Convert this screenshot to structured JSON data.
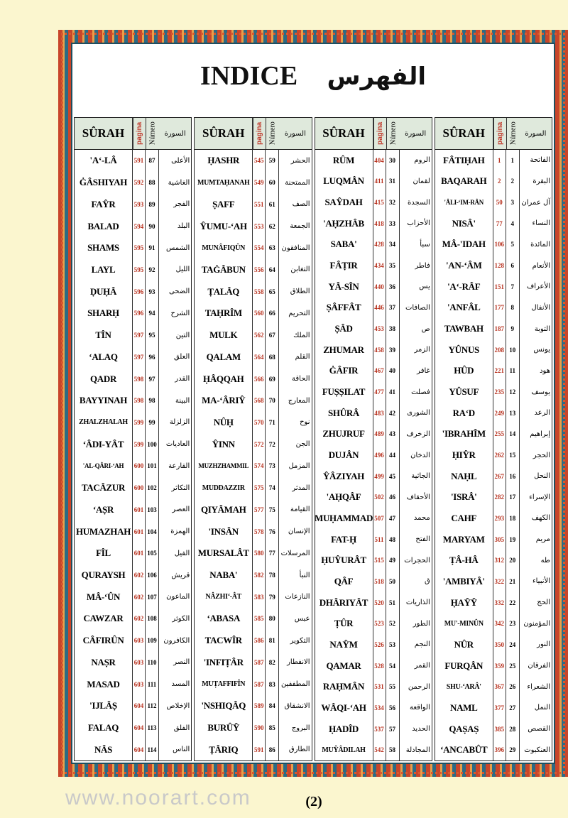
{
  "title": {
    "latin": "INDICE",
    "arabic": "الفهرس"
  },
  "headers": {
    "surah": "SÛRAH",
    "pagina": "pagina",
    "numero": "Número",
    "arabic": "السورة"
  },
  "watermark": "www.noorart.com",
  "page_number": "(2)",
  "colors": {
    "frame": "#2c6b84",
    "ornament": "#c8452a",
    "page_numbers": "#b8321f",
    "header_bg": "#dfe9dc",
    "paper": "#fbf6cf"
  },
  "tables": [
    {
      "rows": [
        [
          "'A‘-LÂ",
          "591",
          "87",
          "الأعلى"
        ],
        [
          "ĠÂSHIYAH",
          "592",
          "88",
          "الغاشية"
        ],
        [
          "FAŶR",
          "593",
          "89",
          "الفجر"
        ],
        [
          "BALAD",
          "594",
          "90",
          "البلد"
        ],
        [
          "SHAMS",
          "595",
          "91",
          "الشمس"
        ],
        [
          "LAYL",
          "595",
          "92",
          "الليل"
        ],
        [
          "ḌUḤÂ",
          "596",
          "93",
          "الضحى"
        ],
        [
          "SHARḤ",
          "596",
          "94",
          "الشرح"
        ],
        [
          "TÎN",
          "597",
          "95",
          "التين"
        ],
        [
          "‘ALAQ",
          "597",
          "96",
          "العلق"
        ],
        [
          "QADR",
          "598",
          "97",
          "القدر"
        ],
        [
          "BAYYINAH",
          "598",
          "98",
          "البينة"
        ],
        [
          "ZHALZHALAH",
          "599",
          "99",
          "الزلزلة"
        ],
        [
          "‘ÂDI-YÂT",
          "599",
          "100",
          "العاديات"
        ],
        [
          "'AL-QÂRI-‘AH",
          "600",
          "101",
          "القارعة"
        ],
        [
          "TACÂZUR",
          "600",
          "102",
          "التكاثر"
        ],
        [
          "‘AṢR",
          "601",
          "103",
          "العصر"
        ],
        [
          "HUMAZHAH",
          "601",
          "104",
          "الهمزة"
        ],
        [
          "FÎL",
          "601",
          "105",
          "الفيل"
        ],
        [
          "QURAYSH",
          "602",
          "106",
          "قريش"
        ],
        [
          "MÂ-‘ÛN",
          "602",
          "107",
          "الماعون"
        ],
        [
          "CAWZAR",
          "602",
          "108",
          "الكوثر"
        ],
        [
          "CÂFIRÛN",
          "603",
          "109",
          "الكافرون"
        ],
        [
          "NAṢR",
          "603",
          "110",
          "النصر"
        ],
        [
          "MASAD",
          "603",
          "111",
          "المسد"
        ],
        [
          "'IJLÂṢ",
          "604",
          "112",
          "الإخلاص"
        ],
        [
          "FALAQ",
          "604",
          "113",
          "الفلق"
        ],
        [
          "NÂS",
          "604",
          "114",
          "الناس"
        ]
      ]
    },
    {
      "rows": [
        [
          "ḤASHR",
          "545",
          "59",
          "الحشر"
        ],
        [
          "MUMTAḤANAH",
          "549",
          "60",
          "الممتحنة"
        ],
        [
          "ṢAFF",
          "551",
          "61",
          "الصف"
        ],
        [
          "ŶUMU-‘AH",
          "553",
          "62",
          "الجمعة"
        ],
        [
          "MUNÂFIQÛN",
          "554",
          "63",
          "المنافقون"
        ],
        [
          "TAĠÂBUN",
          "556",
          "64",
          "التغابن"
        ],
        [
          "ṬALÂQ",
          "558",
          "65",
          "الطلاق"
        ],
        [
          "TAḤRÎM",
          "560",
          "66",
          "التحريم"
        ],
        [
          "MULK",
          "562",
          "67",
          "الملك"
        ],
        [
          "QALAM",
          "564",
          "68",
          "القلم"
        ],
        [
          "ḤÂQQAH",
          "566",
          "69",
          "الحاقة"
        ],
        [
          "MA-‘ÂRIŶ",
          "568",
          "70",
          "المعارج"
        ],
        [
          "NÛḤ",
          "570",
          "71",
          "نوح"
        ],
        [
          "ŶINN",
          "572",
          "72",
          "الجن"
        ],
        [
          "MUZHZHAMMIL",
          "574",
          "73",
          "المزمل"
        ],
        [
          "MUDDAZZIR",
          "575",
          "74",
          "المدثر"
        ],
        [
          "QIYÂMAH",
          "577",
          "75",
          "القيامة"
        ],
        [
          "'INSÂN",
          "578",
          "76",
          "الإنسان"
        ],
        [
          "MURSALÂT",
          "580",
          "77",
          "المرسلات"
        ],
        [
          "NABA'",
          "582",
          "78",
          "النبأ"
        ],
        [
          "NÂZHI‘-ÂT",
          "583",
          "79",
          "النازعات"
        ],
        [
          "‘ABASA",
          "585",
          "80",
          "عبس"
        ],
        [
          "TACWÎR",
          "586",
          "81",
          "التكوير"
        ],
        [
          "'INFIṬÂR",
          "587",
          "82",
          "الانفطار"
        ],
        [
          "MUṬAFFIFÎN",
          "587",
          "83",
          "المطففين"
        ],
        [
          "'NSHIQÂQ",
          "589",
          "84",
          "الانشقاق"
        ],
        [
          "BURÛŶ",
          "590",
          "85",
          "البروج"
        ],
        [
          "ṬÂRIQ",
          "591",
          "86",
          "الطارق"
        ]
      ]
    },
    {
      "rows": [
        [
          "RÛM",
          "404",
          "30",
          "الروم"
        ],
        [
          "LUQMÂN",
          "411",
          "31",
          "لقمان"
        ],
        [
          "SAŶDAH",
          "415",
          "32",
          "السجدة"
        ],
        [
          "'AḤZHÂB",
          "418",
          "33",
          "الأحزاب"
        ],
        [
          "SABA'",
          "428",
          "34",
          "سبأ"
        ],
        [
          "FÂṬIR",
          "434",
          "35",
          "فاطر"
        ],
        [
          "YÂ-SÎN",
          "440",
          "36",
          "يس"
        ],
        [
          "ṢÂFFÂT",
          "446",
          "37",
          "الصافات"
        ],
        [
          "ṢÂD",
          "453",
          "38",
          "ص"
        ],
        [
          "ZHUMAR",
          "458",
          "39",
          "الزمر"
        ],
        [
          "ĠÂFIR",
          "467",
          "40",
          "غافر"
        ],
        [
          "FUṢṢILAT",
          "477",
          "41",
          "فصلت"
        ],
        [
          "SHÛRÂ",
          "483",
          "42",
          "الشورى"
        ],
        [
          "ZHUJRUF",
          "489",
          "43",
          "الزخرف"
        ],
        [
          "DUJÂN",
          "496",
          "44",
          "الدخان"
        ],
        [
          "ŶÂZIYAH",
          "499",
          "45",
          "الجاثية"
        ],
        [
          "'AḤQÂF",
          "502",
          "46",
          "الأحقاف"
        ],
        [
          "MUḤAMMAD",
          "507",
          "47",
          "محمد"
        ],
        [
          "FAT-Ḥ",
          "511",
          "48",
          "الفتح"
        ],
        [
          "ḤUŶURÂT",
          "515",
          "49",
          "الحجرات"
        ],
        [
          "QÂF",
          "518",
          "50",
          "ق"
        ],
        [
          "DHÂRIYÂT",
          "520",
          "51",
          "الذاريات"
        ],
        [
          "ṬÛR",
          "523",
          "52",
          "الطور"
        ],
        [
          "NAŶM",
          "526",
          "53",
          "النجم"
        ],
        [
          "QAMAR",
          "528",
          "54",
          "القمر"
        ],
        [
          "RAḤMÂN",
          "531",
          "55",
          "الرحمن"
        ],
        [
          "WÂQI-‘AH",
          "534",
          "56",
          "الواقعة"
        ],
        [
          "ḤADÎD",
          "537",
          "57",
          "الحديد"
        ],
        [
          "MUŶÂDILAH",
          "542",
          "58",
          "المجادلة"
        ]
      ]
    },
    {
      "rows": [
        [
          "FÂTIḤAH",
          "1",
          "1",
          "الفاتحة"
        ],
        [
          "BAQARAH",
          "2",
          "2",
          "البقرة"
        ],
        [
          "'ÂLI-‘IM-RÂN",
          "50",
          "3",
          "آل عمران"
        ],
        [
          "NISÂ'",
          "77",
          "4",
          "النساء"
        ],
        [
          "MÂ-'IDAH",
          "106",
          "5",
          "المائدة"
        ],
        [
          "'AN-‘ÂM",
          "128",
          "6",
          "الأنعام"
        ],
        [
          "'A‘-RÂF",
          "151",
          "7",
          "الأعراف"
        ],
        [
          "'ANFÂL",
          "177",
          "8",
          "الأنفال"
        ],
        [
          "TAWBAH",
          "187",
          "9",
          "التوبة"
        ],
        [
          "YÛNUS",
          "208",
          "10",
          "يونس"
        ],
        [
          "HÛD",
          "221",
          "11",
          "هود"
        ],
        [
          "YÛSUF",
          "235",
          "12",
          "يوسف"
        ],
        [
          "RA‘D",
          "249",
          "13",
          "الرعد"
        ],
        [
          "'IBRAHÎM",
          "255",
          "14",
          "إبراهيم"
        ],
        [
          "ḤIŶR",
          "262",
          "15",
          "الحجر"
        ],
        [
          "NAḤL",
          "267",
          "16",
          "النحل"
        ],
        [
          "'ISRÂ'",
          "282",
          "17",
          "الإسراء"
        ],
        [
          "CAHF",
          "293",
          "18",
          "الكهف"
        ],
        [
          "MARYAM",
          "305",
          "19",
          "مريم"
        ],
        [
          "ṬÂ-HÂ",
          "312",
          "20",
          "طه"
        ],
        [
          "'AMBIYÂ'",
          "322",
          "21",
          "الأنبياء"
        ],
        [
          "ḤAŶŶ",
          "332",
          "22",
          "الحج"
        ],
        [
          "MU'-MINÛN",
          "342",
          "23",
          "المؤمنون"
        ],
        [
          "NÛR",
          "350",
          "24",
          "النور"
        ],
        [
          "FURQÂN",
          "359",
          "25",
          "الفرقان"
        ],
        [
          "SHU-‘ARÂ'",
          "367",
          "26",
          "الشعراء"
        ],
        [
          "NAML",
          "377",
          "27",
          "النمل"
        ],
        [
          "QAṢAṢ",
          "385",
          "28",
          "القصص"
        ],
        [
          "‘ANCABÛT",
          "396",
          "29",
          "العنكبوت"
        ]
      ]
    }
  ]
}
